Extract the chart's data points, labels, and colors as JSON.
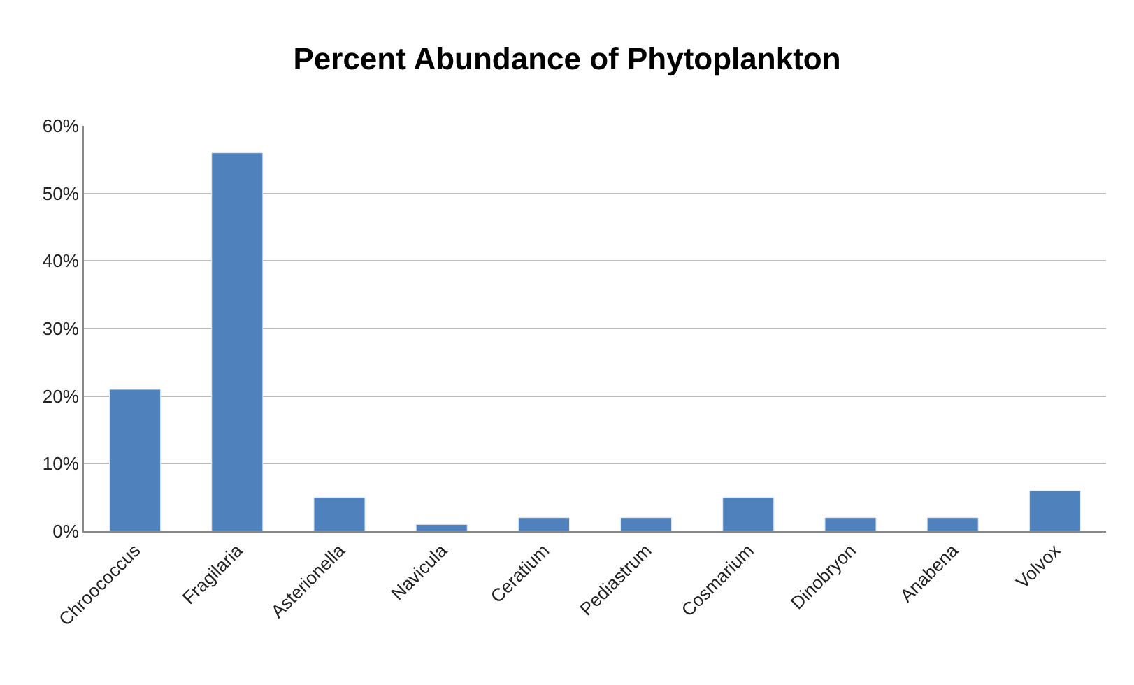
{
  "chart_data": {
    "type": "bar",
    "title": "Percent Abundance of Phytoplankton",
    "categories": [
      "Chroococcus",
      "Fragilaria",
      "Asterionella",
      "Navicula",
      "Ceratium",
      "Pediastrum",
      "Cosmarium",
      "Dinobryon",
      "Anabena",
      "Volvox"
    ],
    "values": [
      21,
      56,
      5,
      1,
      2,
      2,
      5,
      2,
      2,
      6
    ],
    "color": "#4f81bd",
    "ylim": [
      0,
      60
    ],
    "yticks": [
      {
        "value": 0,
        "label": "0%"
      },
      {
        "value": 10,
        "label": "10%"
      },
      {
        "value": 20,
        "label": "20%"
      },
      {
        "value": 30,
        "label": "30%"
      },
      {
        "value": 40,
        "label": "40%"
      },
      {
        "value": 50,
        "label": "50%"
      },
      {
        "value": 60,
        "label": "60%"
      }
    ],
    "grid": "y"
  }
}
